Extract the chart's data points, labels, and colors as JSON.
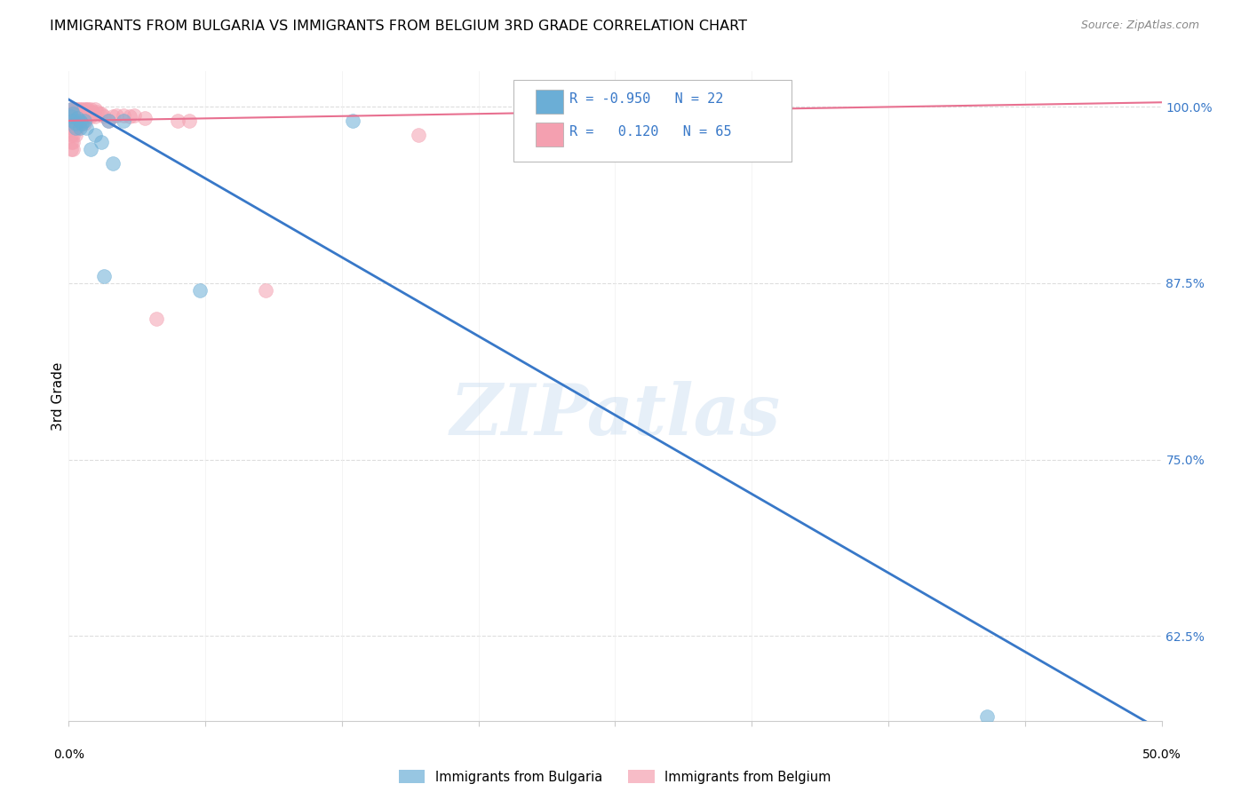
{
  "title": "IMMIGRANTS FROM BULGARIA VS IMMIGRANTS FROM BELGIUM 3RD GRADE CORRELATION CHART",
  "source": "Source: ZipAtlas.com",
  "ylabel": "3rd Grade",
  "ylabel_ticks": [
    "100.0%",
    "87.5%",
    "75.0%",
    "62.5%"
  ],
  "ylabel_tick_values": [
    1.0,
    0.875,
    0.75,
    0.625
  ],
  "xlim": [
    0.0,
    0.5
  ],
  "ylim": [
    0.565,
    1.025
  ],
  "legend_labels_bottom": [
    "Immigrants from Bulgaria",
    "Immigrants from Belgium"
  ],
  "bulgaria_color": "#6BAED6",
  "belgium_color": "#F4A0B0",
  "watermark": "ZIPatlas",
  "bulgaria_scatter": {
    "x": [
      0.001,
      0.001,
      0.002,
      0.002,
      0.003,
      0.003,
      0.004,
      0.005,
      0.005,
      0.006,
      0.007,
      0.008,
      0.01,
      0.012,
      0.015,
      0.016,
      0.018,
      0.02,
      0.025,
      0.06,
      0.13,
      0.42
    ],
    "y": [
      0.998,
      0.993,
      0.995,
      0.99,
      0.988,
      0.985,
      0.992,
      0.99,
      0.985,
      0.988,
      0.99,
      0.985,
      0.97,
      0.98,
      0.975,
      0.88,
      0.99,
      0.96,
      0.99,
      0.87,
      0.99,
      0.568
    ]
  },
  "belgium_scatter": {
    "x": [
      0.001,
      0.001,
      0.001,
      0.001,
      0.001,
      0.001,
      0.001,
      0.001,
      0.002,
      0.002,
      0.002,
      0.002,
      0.002,
      0.002,
      0.002,
      0.002,
      0.003,
      0.003,
      0.003,
      0.003,
      0.003,
      0.003,
      0.004,
      0.004,
      0.004,
      0.004,
      0.004,
      0.005,
      0.005,
      0.005,
      0.005,
      0.006,
      0.006,
      0.006,
      0.007,
      0.007,
      0.007,
      0.008,
      0.008,
      0.009,
      0.009,
      0.01,
      0.01,
      0.011,
      0.012,
      0.012,
      0.013,
      0.014,
      0.015,
      0.016,
      0.018,
      0.02,
      0.022,
      0.025,
      0.028,
      0.03,
      0.035,
      0.04,
      0.05,
      0.055,
      0.09,
      0.16,
      0.22,
      0.25,
      0.29
    ],
    "y": [
      0.998,
      0.995,
      0.992,
      0.99,
      0.985,
      0.98,
      0.975,
      0.97,
      0.998,
      0.995,
      0.992,
      0.99,
      0.985,
      0.98,
      0.975,
      0.97,
      0.998,
      0.995,
      0.992,
      0.99,
      0.985,
      0.98,
      0.998,
      0.995,
      0.992,
      0.988,
      0.985,
      0.998,
      0.995,
      0.992,
      0.988,
      0.998,
      0.995,
      0.99,
      0.998,
      0.993,
      0.988,
      0.998,
      0.993,
      0.998,
      0.993,
      0.998,
      0.993,
      0.996,
      0.998,
      0.993,
      0.996,
      0.995,
      0.995,
      0.993,
      0.99,
      0.993,
      0.994,
      0.994,
      0.993,
      0.994,
      0.992,
      0.85,
      0.99,
      0.99,
      0.87,
      0.98,
      0.99,
      0.985,
      0.985
    ]
  },
  "bulgaria_trend_x": [
    0.0,
    0.5
  ],
  "bulgaria_trend_y": [
    1.005,
    0.558
  ],
  "belgium_trend_x": [
    0.0,
    0.5
  ],
  "belgium_trend_y": [
    0.99,
    1.003
  ],
  "xtick_positions": [
    0.0,
    0.0625,
    0.125,
    0.1875,
    0.25,
    0.3125,
    0.375,
    0.4375,
    0.5
  ],
  "title_fontsize": 11.5,
  "ylabel_fontsize": 9,
  "tick_fontsize": 10,
  "source_fontsize": 9,
  "legend_R_color": "#3878C8",
  "right_tick_color": "#3878C8",
  "grid_color": "#dddddd",
  "spine_color": "#cccccc"
}
